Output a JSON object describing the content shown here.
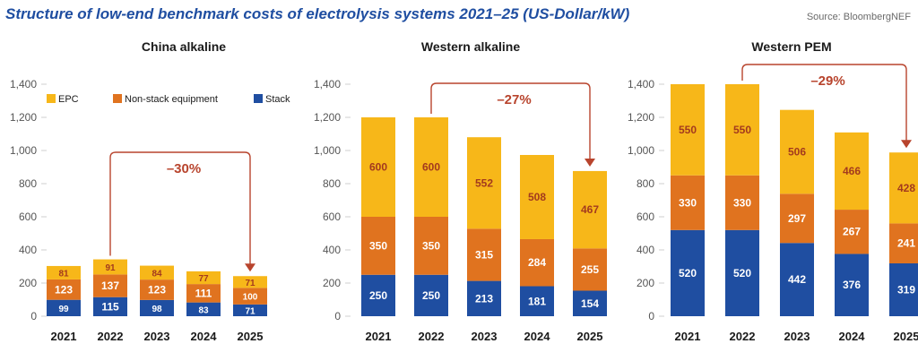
{
  "title": "Structure of low-end benchmark costs of electrolysis systems 2021–25 (US-Dollar/kW)",
  "source": "Source: BloombergNEF",
  "colors": {
    "epc": "#f7b719",
    "non_stack": "#e0731f",
    "stack": "#1f4ea1",
    "arrow": "#b8442d",
    "axis_text": "#555555",
    "grid": "#cfcfcf"
  },
  "legend": [
    {
      "name": "EPC",
      "color_key": "epc"
    },
    {
      "name": "Non-stack equipment",
      "color_key": "non_stack"
    },
    {
      "name": "Stack",
      "color_key": "stack"
    }
  ],
  "chart_data": [
    {
      "type": "bar",
      "stacked": true,
      "title": "China alkaline",
      "categories": [
        "2021",
        "2022",
        "2023",
        "2024",
        "2025"
      ],
      "yticks": [
        "0",
        "200",
        "400",
        "600",
        "800",
        "1,000",
        "1,200",
        "1,400"
      ],
      "ylim": [
        0,
        1400
      ],
      "legend_visible": true,
      "legend_position": "top",
      "series": [
        {
          "name": "Stack",
          "color_key": "stack",
          "values": [
            99,
            115,
            98,
            83,
            71
          ]
        },
        {
          "name": "Non-stack equipment",
          "color_key": "non_stack",
          "values": [
            123,
            137,
            123,
            111,
            100
          ]
        },
        {
          "name": "EPC",
          "color_key": "epc",
          "values": [
            81,
            91,
            84,
            77,
            71
          ]
        }
      ],
      "annotation": {
        "text": "–30%",
        "from_category": "2022",
        "to_category": "2025",
        "clearance": 360
      }
    },
    {
      "type": "bar",
      "stacked": true,
      "title": "Western alkaline",
      "categories": [
        "2021",
        "2022",
        "2023",
        "2024",
        "2025"
      ],
      "yticks": [
        "0",
        "200",
        "400",
        "600",
        "800",
        "1,000",
        "1,200",
        "1,400"
      ],
      "ylim": [
        0,
        1400
      ],
      "legend_visible": false,
      "series": [
        {
          "name": "Stack",
          "color_key": "stack",
          "values": [
            250,
            250,
            213,
            181,
            154
          ]
        },
        {
          "name": "Non-stack equipment",
          "color_key": "non_stack",
          "values": [
            350,
            350,
            315,
            284,
            255
          ]
        },
        {
          "name": "EPC",
          "color_key": "epc",
          "values": [
            600,
            600,
            552,
            508,
            467
          ]
        }
      ],
      "annotation": {
        "text": "–27%",
        "from_category": "2022",
        "to_category": "2025",
        "clearance": 200
      }
    },
    {
      "type": "bar",
      "stacked": true,
      "title": "Western PEM",
      "categories": [
        "2021",
        "2022",
        "2023",
        "2024",
        "2025"
      ],
      "yticks": [
        "0",
        "200",
        "400",
        "600",
        "800",
        "1,000",
        "1,200",
        "1,400"
      ],
      "ylim": [
        0,
        1400
      ],
      "legend_visible": false,
      "series": [
        {
          "name": "Stack",
          "color_key": "stack",
          "values": [
            520,
            520,
            442,
            376,
            319
          ]
        },
        {
          "name": "Non-stack equipment",
          "color_key": "non_stack",
          "values": [
            330,
            330,
            297,
            267,
            241
          ]
        },
        {
          "name": "EPC",
          "color_key": "epc",
          "values": [
            550,
            550,
            506,
            466,
            428
          ]
        }
      ],
      "annotation": {
        "text": "–29%",
        "from_category": "2022",
        "to_category": "2025",
        "clearance": 0
      }
    }
  ]
}
